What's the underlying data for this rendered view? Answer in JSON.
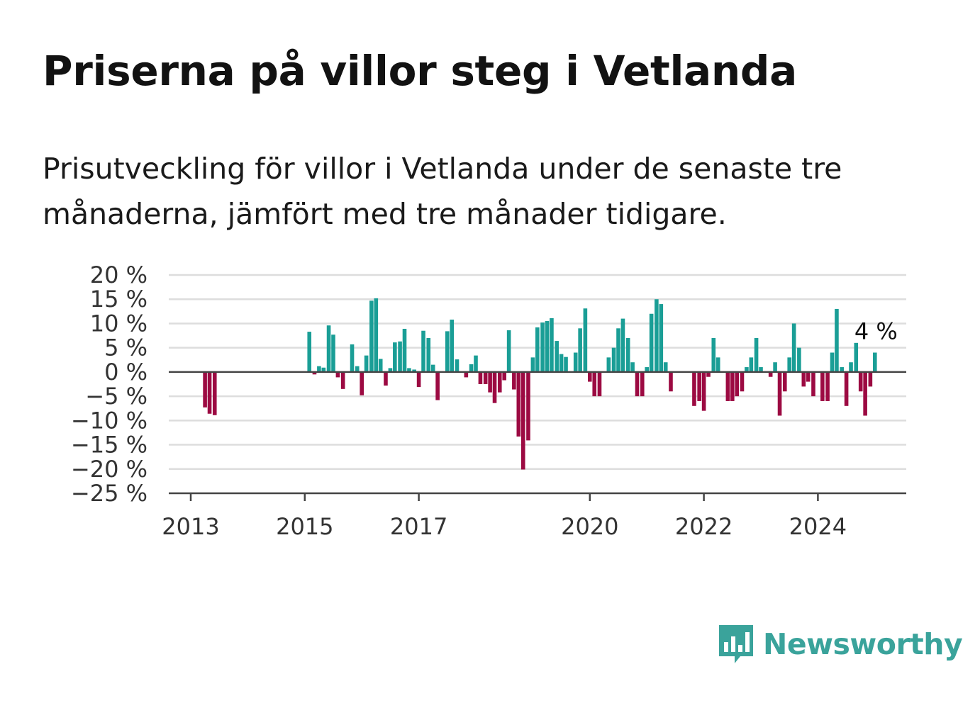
{
  "title": "Priserna på villor steg i Vetlanda",
  "subtitle": "Prisutveckling för villor i Vetlanda under de senaste tre månaderna, jämfört med tre månader tidigare.",
  "logo": {
    "name": "Newsworthy",
    "icon": "bar-chart-speech-bubble-icon"
  },
  "colors": {
    "positive": "#1a9e96",
    "negative": "#9c0a42",
    "grid": "#dddddd",
    "axis": "#444444",
    "text": "#333333"
  },
  "chart_data": {
    "type": "bar",
    "title": "",
    "xlabel": "",
    "ylabel": "",
    "ylim": [
      -25,
      20
    ],
    "xlim": [
      2012.5,
      2025.5
    ],
    "yticks": [
      20,
      15,
      10,
      5,
      0,
      -5,
      -10,
      -15,
      -20,
      -25
    ],
    "ytick_labels": [
      "20 %",
      "15 %",
      "10 %",
      "5 %",
      "0 %",
      "−5 %",
      "−10 %",
      "−15 %",
      "−20 %",
      "−25 %"
    ],
    "xticks": [
      2013,
      2015,
      2017,
      2020,
      2022,
      2024
    ],
    "xtick_labels": [
      "2013",
      "2015",
      "2017",
      "2020",
      "2022",
      "2024"
    ],
    "grid": true,
    "annotation": {
      "text": "4 %",
      "x": 2025.0,
      "y": 4
    },
    "x": [
      2013.25,
      2013.33,
      2013.42,
      2015.08,
      2015.17,
      2015.25,
      2015.33,
      2015.42,
      2015.5,
      2015.58,
      2015.67,
      2015.75,
      2015.83,
      2015.92,
      2016.0,
      2016.08,
      2016.17,
      2016.25,
      2016.33,
      2016.42,
      2016.5,
      2016.58,
      2016.67,
      2016.75,
      2016.83,
      2016.92,
      2017.0,
      2017.08,
      2017.17,
      2017.25,
      2017.33,
      2017.42,
      2017.5,
      2017.58,
      2017.67,
      2017.75,
      2017.83,
      2017.92,
      2018.0,
      2018.08,
      2018.17,
      2018.25,
      2018.33,
      2018.42,
      2018.5,
      2018.58,
      2018.67,
      2018.75,
      2018.83,
      2018.92,
      2019.0,
      2019.08,
      2019.17,
      2019.25,
      2019.33,
      2019.42,
      2019.5,
      2019.58,
      2019.67,
      2019.75,
      2019.83,
      2019.92,
      2020.0,
      2020.08,
      2020.17,
      2020.25,
      2020.33,
      2020.42,
      2020.5,
      2020.58,
      2020.67,
      2020.75,
      2020.83,
      2020.92,
      2021.0,
      2021.08,
      2021.17,
      2021.25,
      2021.33,
      2021.42,
      2021.5,
      2021.58,
      2021.67,
      2021.75,
      2021.83,
      2021.92,
      2022.0,
      2022.08,
      2022.17,
      2022.25,
      2022.33,
      2022.42,
      2022.5,
      2022.58,
      2022.67,
      2022.75,
      2022.83,
      2022.92,
      2023.0,
      2023.08,
      2023.17,
      2023.25,
      2023.33,
      2023.42,
      2023.5,
      2023.58,
      2023.67,
      2023.75,
      2023.83,
      2023.92,
      2024.0,
      2024.08,
      2024.17,
      2024.25,
      2024.33,
      2024.42,
      2024.5,
      2024.58,
      2024.67,
      2024.75,
      2024.83,
      2024.92,
      2025.0
    ],
    "values": [
      -7.3,
      -8.6,
      -8.9,
      8.3,
      -0.5,
      1.2,
      0.9,
      9.6,
      7.7,
      -1.1,
      -3.5,
      0,
      5.7,
      1.2,
      -4.8,
      3.4,
      14.7,
      15.2,
      2.7,
      -2.8,
      0.8,
      6.1,
      6.3,
      8.9,
      0.8,
      0.5,
      -3.1,
      8.5,
      7.0,
      1.5,
      -5.8,
      0,
      8.4,
      10.8,
      2.6,
      0,
      -1.1,
      1.6,
      3.4,
      -2.5,
      -2.5,
      -4.2,
      -6.4,
      -4.2,
      -1.7,
      8.6,
      -3.6,
      -13.3,
      -20.1,
      -14.1,
      3.0,
      9.2,
      10.2,
      10.5,
      11.1,
      6.4,
      3.7,
      3.1,
      0,
      4.0,
      9.0,
      13.1,
      -2.0,
      -5.0,
      -5.0,
      0,
      3.0,
      5.0,
      9.0,
      11.0,
      7.0,
      2.0,
      -5.0,
      -5.0,
      1.0,
      12.0,
      15.0,
      14.0,
      2.0,
      -4.0,
      0,
      0,
      0,
      0,
      -7.0,
      -6.0,
      -8.0,
      -1.0,
      7.0,
      3.0,
      0,
      -6.0,
      -6.0,
      -5.0,
      -4.0,
      1.0,
      3.0,
      7.0,
      1.0,
      0,
      -1.0,
      2.0,
      -9.0,
      -4.0,
      3.0,
      10.0,
      5.0,
      -3.0,
      -2.0,
      -5.0,
      0,
      -6.0,
      -6.0,
      4.0,
      13.0,
      1.0,
      -7.0,
      2.0,
      6.0,
      -4.0,
      -9.0,
      -3.0,
      4.0
    ]
  }
}
